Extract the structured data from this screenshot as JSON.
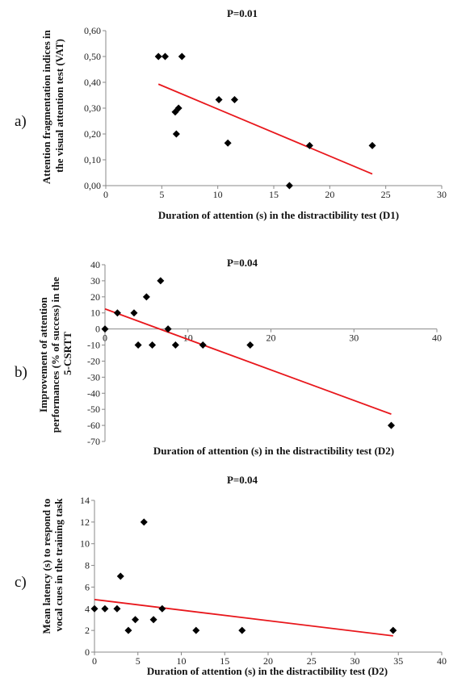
{
  "chart_data": [
    {
      "panel": "a)",
      "type": "scatter",
      "title": "P=0.01",
      "xlabel": "Duration of attention (s) in the distractibility test (D1)",
      "ylabel": "Attention fragmentation indices in the visual attention test (VAT)",
      "xlim": [
        0,
        30
      ],
      "ylim": [
        0,
        0.6
      ],
      "xticks": [
        "0",
        "5",
        "10",
        "15",
        "20",
        "25",
        "30"
      ],
      "yticks": [
        "0,00",
        "0,10",
        "0,20",
        "0,30",
        "0,40",
        "0,50",
        "0,60"
      ],
      "grid": false,
      "points": [
        {
          "x": 4.7,
          "y": 0.5
        },
        {
          "x": 5.3,
          "y": 0.5
        },
        {
          "x": 6.8,
          "y": 0.5
        },
        {
          "x": 6.2,
          "y": 0.285
        },
        {
          "x": 6.5,
          "y": 0.3
        },
        {
          "x": 6.3,
          "y": 0.2
        },
        {
          "x": 10.1,
          "y": 0.333
        },
        {
          "x": 11.5,
          "y": 0.333
        },
        {
          "x": 10.9,
          "y": 0.165
        },
        {
          "x": 16.4,
          "y": 0.0
        },
        {
          "x": 18.2,
          "y": 0.155
        },
        {
          "x": 23.8,
          "y": 0.155
        }
      ],
      "trendline": {
        "x": [
          4.7,
          23.8
        ],
        "y": [
          0.393,
          0.045
        ],
        "color": "#e8171c"
      }
    },
    {
      "panel": "b)",
      "type": "scatter",
      "title": "P=0.04",
      "xlabel": "Duration of attention (s) in the distractibility test (D2)",
      "ylabel": "Improvement of attention performances (% of success) in the 5-CSRTT",
      "xlim": [
        0,
        40
      ],
      "ylim": [
        -70,
        40
      ],
      "xticks": [
        "0",
        "10",
        "20",
        "30",
        "40"
      ],
      "yticks": [
        "40",
        "30",
        "20",
        "10",
        "0",
        "-10",
        "-20",
        "-30",
        "-40",
        "-50",
        "-60",
        "-70"
      ],
      "grid": false,
      "points": [
        {
          "x": 0,
          "y": 0
        },
        {
          "x": 1.5,
          "y": 10
        },
        {
          "x": 3.5,
          "y": 10
        },
        {
          "x": 4.0,
          "y": -10
        },
        {
          "x": 5.0,
          "y": 20
        },
        {
          "x": 5.7,
          "y": -10
        },
        {
          "x": 6.7,
          "y": 30
        },
        {
          "x": 7.6,
          "y": 0
        },
        {
          "x": 8.5,
          "y": -10
        },
        {
          "x": 11.8,
          "y": -10
        },
        {
          "x": 17.5,
          "y": -10
        },
        {
          "x": 34.5,
          "y": -60
        }
      ],
      "trendline": {
        "x": [
          0,
          34.5
        ],
        "y": [
          12.5,
          -53
        ],
        "color": "#e8171c"
      }
    },
    {
      "panel": "c)",
      "type": "scatter",
      "title": "P=0.04",
      "xlabel": "Duration of attention (s) in the distractibility test (D2)",
      "ylabel": "Mean latency (s) to respond to vocal cues in the training task",
      "xlim": [
        0,
        40
      ],
      "ylim": [
        0,
        14
      ],
      "xticks": [
        "0",
        "5",
        "10",
        "15",
        "20",
        "25",
        "30",
        "35",
        "40"
      ],
      "yticks": [
        "0",
        "2",
        "4",
        "6",
        "8",
        "10",
        "12",
        "14"
      ],
      "grid": false,
      "points": [
        {
          "x": 0,
          "y": 4
        },
        {
          "x": 1.2,
          "y": 4
        },
        {
          "x": 2.6,
          "y": 4
        },
        {
          "x": 3.0,
          "y": 7
        },
        {
          "x": 3.9,
          "y": 2
        },
        {
          "x": 4.7,
          "y": 3
        },
        {
          "x": 5.7,
          "y": 12
        },
        {
          "x": 6.8,
          "y": 3
        },
        {
          "x": 7.8,
          "y": 4
        },
        {
          "x": 11.7,
          "y": 2
        },
        {
          "x": 17.0,
          "y": 2
        },
        {
          "x": 34.4,
          "y": 2
        }
      ],
      "trendline": {
        "x": [
          0,
          34.4
        ],
        "y": [
          4.85,
          1.5
        ],
        "color": "#e8171c"
      }
    }
  ]
}
